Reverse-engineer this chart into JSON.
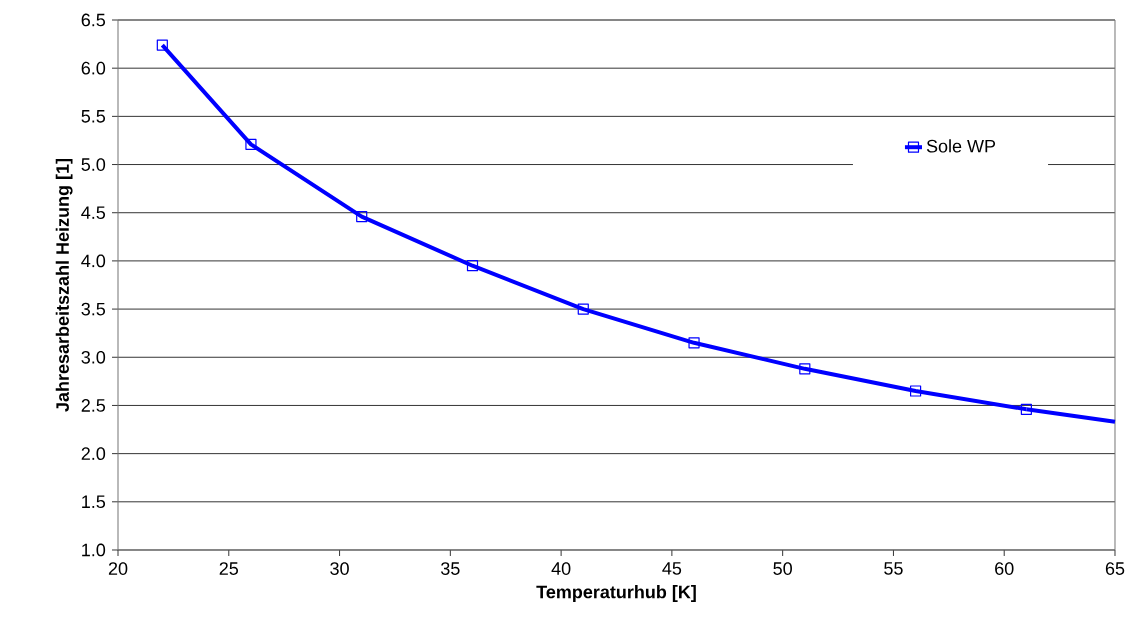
{
  "chart_data": {
    "type": "line",
    "xlabel": "Temperaturhub [K]",
    "ylabel": "Jahresarbeitszahl Heizung [1]",
    "xlim": [
      20,
      65
    ],
    "xticks": [
      20,
      25,
      30,
      35,
      40,
      45,
      50,
      55,
      60,
      65
    ],
    "ylim": [
      1.0,
      6.5
    ],
    "yticks": [
      {
        "value": 1.0,
        "label": "1.0"
      },
      {
        "value": 1.5,
        "label": "1.5"
      },
      {
        "value": 2.0,
        "label": "2.0"
      },
      {
        "value": 2.5,
        "label": "2.5"
      },
      {
        "value": 3.0,
        "label": "3.0"
      },
      {
        "value": 3.5,
        "label": "3.5"
      },
      {
        "value": 4.0,
        "label": "4.0"
      },
      {
        "value": 4.5,
        "label": "4.5"
      },
      {
        "value": 5.0,
        "label": "5.0"
      },
      {
        "value": 5.5,
        "label": "5.5"
      },
      {
        "value": 6.0,
        "label": "6.0"
      },
      {
        "value": 6.5,
        "label": "6.5"
      }
    ],
    "grid": "y",
    "legend": "top right",
    "series": [
      {
        "name": "Sole WP",
        "color": "#0000ff",
        "marker": "square",
        "x": [
          22,
          26,
          31,
          36,
          41,
          46,
          51,
          56,
          61
        ],
        "values": [
          6.24,
          5.21,
          4.46,
          3.95,
          3.5,
          3.15,
          2.88,
          2.65,
          2.46
        ]
      },
      {
        "color": "#0000ff",
        "marker": "none",
        "x": [
          61,
          65
        ],
        "values": [
          2.46,
          2.33
        ]
      }
    ]
  }
}
